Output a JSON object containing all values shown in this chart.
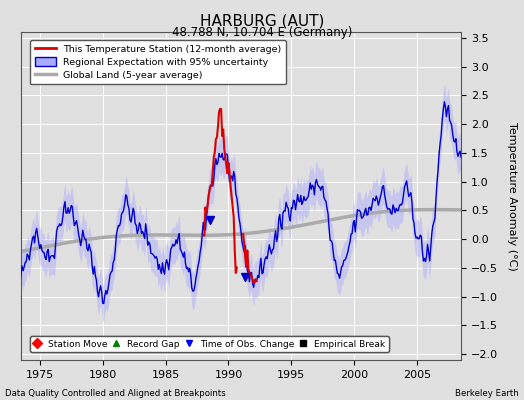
{
  "title": "HARBURG (AUT)",
  "subtitle": "48.788 N, 10.704 E (Germany)",
  "ylabel": "Temperature Anomaly (°C)",
  "xlabel_note": "Data Quality Controlled and Aligned at Breakpoints",
  "branding": "Berkeley Earth",
  "xlim": [
    1973.5,
    2008.5
  ],
  "ylim": [
    -2.1,
    3.6
  ],
  "yticks": [
    -2,
    -1.5,
    -1,
    -0.5,
    0,
    0.5,
    1,
    1.5,
    2,
    2.5,
    3,
    3.5
  ],
  "xticks": [
    1975,
    1980,
    1985,
    1990,
    1995,
    2000,
    2005
  ],
  "bg_color": "#e0e0e0",
  "grid_color": "#ffffff",
  "red_color": "#dd0000",
  "blue_color": "#0000cc",
  "band_color": "#aaaaff",
  "gray_color": "#aaaaaa",
  "legend_items": [
    {
      "label": "This Temperature Station (12-month average)",
      "color": "#dd0000",
      "lw": 1.8
    },
    {
      "label": "Regional Expectation with 95% uncertainty",
      "color": "#0000cc",
      "lw": 1.2
    },
    {
      "label": "Global Land (5-year average)",
      "color": "#aaaaaa",
      "lw": 2.5
    }
  ],
  "marker_legend": [
    {
      "marker": "D",
      "color": "red",
      "label": "Station Move"
    },
    {
      "marker": "^",
      "color": "green",
      "label": "Record Gap"
    },
    {
      "marker": "v",
      "color": "blue",
      "label": "Time of Obs. Change"
    },
    {
      "marker": "s",
      "color": "black",
      "label": "Empirical Break"
    }
  ]
}
